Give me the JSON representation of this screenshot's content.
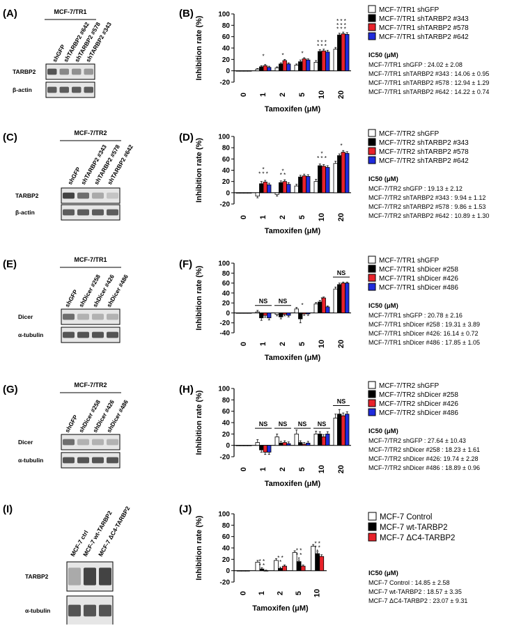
{
  "figure": {
    "panel_letters": [
      "(A)",
      "(B)",
      "(C)",
      "(D)",
      "(E)",
      "(F)",
      "(G)",
      "(H)",
      "(I)",
      "(J)"
    ]
  },
  "colors": {
    "white_bar": "#ffffff",
    "black_bar": "#000000",
    "red_bar": "#e8222a",
    "blue_bar": "#1f2bdc",
    "blot_band": "#3a3a3a"
  },
  "blots": [
    {
      "letter": "(A)",
      "cell_line": "MCF-7/TR1",
      "lanes": [
        "shGFP",
        "shTARBP2 #642",
        "shTARBP2 #578",
        "shTARBP2 #343"
      ],
      "rows": [
        {
          "label": "TARBP2",
          "intensity": [
            0.85,
            0.55,
            0.5,
            0.45
          ]
        },
        {
          "label": "β-actin",
          "intensity": [
            0.8,
            0.8,
            0.8,
            0.8
          ]
        }
      ]
    },
    {
      "letter": "(C)",
      "cell_line": "MCF-7/TR2",
      "lanes": [
        "shGFP",
        "shTARBP2 #343",
        "shTARBP2 #578",
        "shTARBP2 #642"
      ],
      "rows": [
        {
          "label": "TARBP2",
          "intensity": [
            0.95,
            0.7,
            0.35,
            0.2
          ]
        },
        {
          "label": "β-actin",
          "intensity": [
            0.8,
            0.8,
            0.8,
            0.8
          ]
        }
      ]
    },
    {
      "letter": "(E)",
      "cell_line": "MCF-7/TR1",
      "lanes": [
        "shGFP",
        "shDicer #258",
        "shDicer #426",
        "shDicer #486"
      ],
      "rows": [
        {
          "label": "Dicer",
          "intensity": [
            0.7,
            0.3,
            0.3,
            0.3
          ]
        },
        {
          "label": "α-tubulin",
          "intensity": [
            0.85,
            0.85,
            0.85,
            0.85
          ]
        }
      ]
    },
    {
      "letter": "(G)",
      "cell_line": "MCF-7/TR2",
      "lanes": [
        "shGFP",
        "shDicer #258",
        "shDicer #426",
        "shDicer #486"
      ],
      "rows": [
        {
          "label": "Dicer",
          "intensity": [
            0.7,
            0.3,
            0.3,
            0.3
          ]
        },
        {
          "label": "α-tubulin",
          "intensity": [
            0.85,
            0.85,
            0.85,
            0.85
          ]
        }
      ]
    },
    {
      "letter": "(I)",
      "cell_line": "",
      "lanes": [
        "MCF-7 ctrl",
        "MCF-7 wt-TARBP2",
        "MCF-7 ΔC4-TARBP2"
      ],
      "rows": [
        {
          "label": "TARBP2",
          "intensity": [
            0.35,
            0.95,
            0.95
          ]
        },
        {
          "label": "α-tubulin",
          "intensity": [
            0.85,
            0.85,
            0.85
          ]
        }
      ]
    }
  ],
  "chart_data": [
    {
      "letter": "(B)",
      "type": "bar",
      "ylabel": "Inhibition rate (%)",
      "xlabel": "Tamoxifen (μM)",
      "categories": [
        "0",
        "1",
        "2",
        "5",
        "10",
        "20"
      ],
      "ylim": [
        -20,
        100
      ],
      "yticks": [
        -20,
        0,
        20,
        40,
        60,
        80,
        100
      ],
      "series": [
        {
          "name": "MCF-7/TR1 shGFP",
          "color": "#ffffff",
          "values": [
            0,
            3,
            5,
            10,
            15,
            38
          ],
          "errors": [
            1,
            1,
            2,
            2,
            3,
            3
          ]
        },
        {
          "name": "MCF-7/TR1 shTARBP2 #343",
          "color": "#000000",
          "values": [
            0,
            7,
            12,
            16,
            34,
            63
          ],
          "errors": [
            1,
            2,
            2,
            3,
            3,
            3
          ]
        },
        {
          "name": "MCF-7/TR1 shTARBP2 #578",
          "color": "#e8222a",
          "values": [
            0,
            9,
            18,
            21,
            35,
            65
          ],
          "errors": [
            1,
            2,
            2,
            2,
            3,
            3
          ]
        },
        {
          "name": "MCF-7/TR1 shTARBP2 #642",
          "color": "#1f2bdc",
          "values": [
            0,
            6,
            12,
            19,
            33,
            64
          ],
          "errors": [
            1,
            2,
            2,
            2,
            3,
            3
          ]
        }
      ],
      "annotations": [
        {
          "cat": 1,
          "text": "*",
          "y": 22
        },
        {
          "cat": 2,
          "text": "*",
          "y": 24
        },
        {
          "cat": 3,
          "text": "*",
          "y": 27
        },
        {
          "cat": 4,
          "text": "* * *",
          "y": 40
        },
        {
          "cat": 4,
          "text": "* * *",
          "y": 47
        },
        {
          "cat": 5,
          "text": "* * *",
          "y": 70
        },
        {
          "cat": 5,
          "text": "* * *",
          "y": 77
        },
        {
          "cat": 5,
          "text": "* * *",
          "y": 84
        }
      ],
      "legend": [
        "MCF-7/TR1 shGFP",
        "MCF-7/TR1 shTARBP2 #343",
        "MCF-7/TR1 shTARBP2 #578",
        "MCF-7/TR1 shTARBP2 #642"
      ],
      "ic50_title": "IC50 (μM)",
      "ic50": [
        "MCF-7/TR1 shGFP : 24.02 ± 2.08",
        "MCF-7/TR1  shTARBP2 #343 : 14.06 ± 0.95",
        "MCF-7/TR1 shTARBP2 #578 : 12.94 ± 1.29",
        "MCF-7/TR1 shTARBP2 #642 : 14.22 ± 0.74"
      ]
    },
    {
      "letter": "(D)",
      "type": "bar",
      "ylabel": "Inhibition rate (%)",
      "xlabel": "Tamoxifen (μM)",
      "categories": [
        "0",
        "1",
        "2",
        "5",
        "10",
        "20"
      ],
      "ylim": [
        -20,
        100
      ],
      "yticks": [
        -20,
        0,
        20,
        40,
        60,
        80,
        100
      ],
      "series": [
        {
          "name": "MCF-7/TR2 shGFP",
          "color": "#ffffff",
          "values": [
            0,
            -6,
            -3,
            12,
            20,
            52
          ],
          "errors": [
            1,
            3,
            3,
            3,
            4,
            4
          ]
        },
        {
          "name": "MCF-7/TR2 shTARBP2 #343",
          "color": "#000000",
          "values": [
            0,
            16,
            18,
            28,
            48,
            66
          ],
          "errors": [
            1,
            4,
            3,
            3,
            3,
            3
          ]
        },
        {
          "name": "MCF-7/TR2 shTARBP2 #578",
          "color": "#e8222a",
          "values": [
            0,
            19,
            20,
            30,
            47,
            72
          ],
          "errors": [
            1,
            3,
            3,
            3,
            3,
            3
          ]
        },
        {
          "name": "MCF-7/TR2 shTARBP2 #642",
          "color": "#1f2bdc",
          "values": [
            0,
            14,
            15,
            29,
            45,
            70
          ],
          "errors": [
            1,
            3,
            3,
            3,
            3,
            3
          ]
        }
      ],
      "annotations": [
        {
          "cat": 1,
          "text": "*",
          "y": 38
        },
        {
          "cat": 1,
          "text": "* * *",
          "y": 30
        },
        {
          "cat": 2,
          "text": "*",
          "y": 35
        },
        {
          "cat": 2,
          "text": "* *",
          "y": 28
        },
        {
          "cat": 4,
          "text": "*",
          "y": 66
        },
        {
          "cat": 4,
          "text": "* * *",
          "y": 58
        },
        {
          "cat": 5,
          "text": "*",
          "y": 80
        }
      ],
      "legend": [
        "MCF-7/TR2 shGFP",
        "MCF-7/TR2 shTARBP2 #343",
        "MCF-7/TR2 shTARBP2 #578",
        "MCF-7/TR2 shTARBP2 #642"
      ],
      "ic50_title": "IC50 (μM)",
      "ic50": [
        "MCF-7/TR2 shGFP : 19.13 ± 2.12",
        "MCF-7/TR2  shTARBP2 #343 : 9.94 ± 1.12",
        "MCF-7/TR2 shTARBP2 #578 : 9.86 ± 1.53",
        "MCF-7/TR2 shTARBP2 #642 : 10.89 ± 1.30"
      ]
    },
    {
      "letter": "(F)",
      "type": "bar",
      "ylabel": "Inhibition rate (%)",
      "xlabel": "Tamoxifen (μM)",
      "categories": [
        "0",
        "1",
        "2",
        "5",
        "10",
        "20"
      ],
      "ylim": [
        -40,
        100
      ],
      "yticks": [
        -40,
        -20,
        0,
        20,
        40,
        60,
        80,
        100
      ],
      "series": [
        {
          "name": "MCF-7/TR1 shGFP",
          "color": "#ffffff",
          "values": [
            0,
            2,
            -3,
            8,
            18,
            48
          ],
          "errors": [
            1,
            3,
            3,
            3,
            3,
            4
          ]
        },
        {
          "name": "MCF-7/TR1 shDicer #258",
          "color": "#000000",
          "values": [
            0,
            -10,
            -8,
            -12,
            22,
            57
          ],
          "errors": [
            1,
            5,
            4,
            8,
            3,
            3
          ]
        },
        {
          "name": "MCF-7/TR1 shDicer #426",
          "color": "#e8222a",
          "values": [
            0,
            -5,
            -3,
            -2,
            30,
            60
          ],
          "errors": [
            1,
            4,
            3,
            3,
            2,
            2
          ]
        },
        {
          "name": "MCF-7/TR1 shDicer #486",
          "color": "#1f2bdc",
          "values": [
            0,
            -10,
            -5,
            -2,
            12,
            60
          ],
          "errors": [
            1,
            4,
            3,
            3,
            2,
            2
          ]
        }
      ],
      "annotations": [
        {
          "cat": 3,
          "text": "*",
          "y": 12
        },
        {
          "cat": 4,
          "text": "*",
          "y": 24
        }
      ],
      "ns_brackets": [
        {
          "cat": 1,
          "text": "NS",
          "y": 15
        },
        {
          "cat": 2,
          "text": "NS",
          "y": 15
        },
        {
          "cat": 5,
          "text": "NS",
          "y": 72
        }
      ],
      "legend": [
        "MCF-7/TR1 shGFP",
        "MCF-7/TR1 shDicer #258",
        "MCF-7/TR1 shDicer #426",
        "MCF-7/TR1 shDicer #486"
      ],
      "ic50_title": "IC50 (μM)",
      "ic50": [
        "MCF-7/TR1 shGFP : 20.78 ± 2.16",
        "MCF-7/TR1  shDicer #258 : 19.31 ± 3.89",
        "MCF-7/TR1 shDicer #426: 16.14 ± 0.72",
        "MCF-7/TR1 shDicer #486 : 17.85 ± 1.05"
      ]
    },
    {
      "letter": "(H)",
      "type": "bar",
      "ylabel": "Inhibition rate (%)",
      "xlabel": "Tamoxifen (μM)",
      "categories": [
        "0",
        "1",
        "2",
        "5",
        "10",
        "20"
      ],
      "ylim": [
        -20,
        100
      ],
      "yticks": [
        -20,
        0,
        20,
        40,
        60,
        80,
        100
      ],
      "series": [
        {
          "name": "MCF-7/TR2 shGFP",
          "color": "#ffffff",
          "values": [
            0,
            5,
            15,
            20,
            20,
            48
          ],
          "errors": [
            1,
            5,
            5,
            7,
            5,
            7
          ]
        },
        {
          "name": "MCF-7/TR2 shDicer #258",
          "color": "#000000",
          "values": [
            0,
            -8,
            4,
            5,
            20,
            55
          ],
          "errors": [
            1,
            4,
            3,
            3,
            4,
            8
          ]
        },
        {
          "name": "MCF-7/TR2 shDicer #426",
          "color": "#e8222a",
          "values": [
            0,
            -12,
            5,
            2,
            15,
            52
          ],
          "errors": [
            1,
            4,
            3,
            3,
            4,
            5
          ]
        },
        {
          "name": "MCF-7/TR2 shDicer #486",
          "color": "#1f2bdc",
          "values": [
            0,
            -12,
            3,
            4,
            20,
            55
          ],
          "errors": [
            1,
            4,
            3,
            3,
            4,
            4
          ]
        }
      ],
      "annotations": [],
      "ns_brackets": [
        {
          "cat": 1,
          "text": "NS",
          "y": 30
        },
        {
          "cat": 2,
          "text": "NS",
          "y": 30
        },
        {
          "cat": 3,
          "text": "NS",
          "y": 30
        },
        {
          "cat": 4,
          "text": "NS",
          "y": 30
        },
        {
          "cat": 5,
          "text": "NS",
          "y": 70
        }
      ],
      "legend": [
        "MCF-7/TR2 shGFP",
        "MCF-7/TR2 shDicer #258",
        "MCF-7/TR2 shDicer #426",
        "MCF-7/TR2 shDicer #486"
      ],
      "ic50_title": "IC50 (μM)",
      "ic50": [
        "MCF-7/TR2 shGFP : 27.64 ± 10.43",
        "MCF-7/TR2  shDicer #258 : 18.23 ± 1.61",
        "MCF-7/TR2 shDicer #426: 19.74 ± 2.28",
        "MCF-7/TR2 shDicer #486 : 18.89 ± 0.96"
      ]
    },
    {
      "letter": "(J)",
      "type": "bar",
      "ylabel": "Inhibition rate (%)",
      "xlabel": "Tamoxifen (μM)",
      "categories": [
        "0",
        "1",
        "2",
        "5",
        "10"
      ],
      "ylim": [
        -20,
        100
      ],
      "yticks": [
        -20,
        0,
        20,
        40,
        60,
        80,
        100
      ],
      "series": [
        {
          "name": "MCF-7 Control",
          "color": "#ffffff",
          "values": [
            0,
            15,
            18,
            32,
            43
          ],
          "errors": [
            1,
            3,
            3,
            3,
            3
          ]
        },
        {
          "name": "MCF-7 wt-TARBP2",
          "color": "#000000",
          "values": [
            0,
            3,
            4,
            16,
            30
          ],
          "errors": [
            1,
            2,
            2,
            3,
            3
          ]
        },
        {
          "name": "MCF-7 ΔC4-TARBP2",
          "color": "#e8222a",
          "values": [
            0,
            0,
            8,
            8,
            25
          ],
          "errors": [
            1,
            1,
            2,
            2,
            3
          ]
        }
      ],
      "annotations": [
        {
          "cat": 1,
          "text": "* *",
          "y": 13
        },
        {
          "cat": 1,
          "text": "* *",
          "y": 6
        },
        {
          "cat": 2,
          "text": "* *",
          "y": 19
        },
        {
          "cat": 2,
          "text": "*",
          "y": 12
        },
        {
          "cat": 3,
          "text": "* *",
          "y": 32
        },
        {
          "cat": 3,
          "text": "* *",
          "y": 24
        },
        {
          "cat": 3,
          "text": "*",
          "y": 17
        },
        {
          "cat": 4,
          "text": "* *",
          "y": 44
        },
        {
          "cat": 4,
          "text": "* *",
          "y": 37
        },
        {
          "cat": 4,
          "text": "*",
          "y": 30
        }
      ],
      "legend": [
        "MCF-7 Control",
        "MCF-7 wt-TARBP2",
        "MCF-7 ΔC4-TARBP2"
      ],
      "ic50_title": "IC50 (μM)",
      "ic50": [
        "MCF-7 Control : 14.85 ± 2.58",
        "MCF-7 wt-TARBP2 : 18.57 ± 3.35",
        "MCF-7 ΔC4-TARBP2 : 23.07 ± 9.31"
      ]
    }
  ]
}
